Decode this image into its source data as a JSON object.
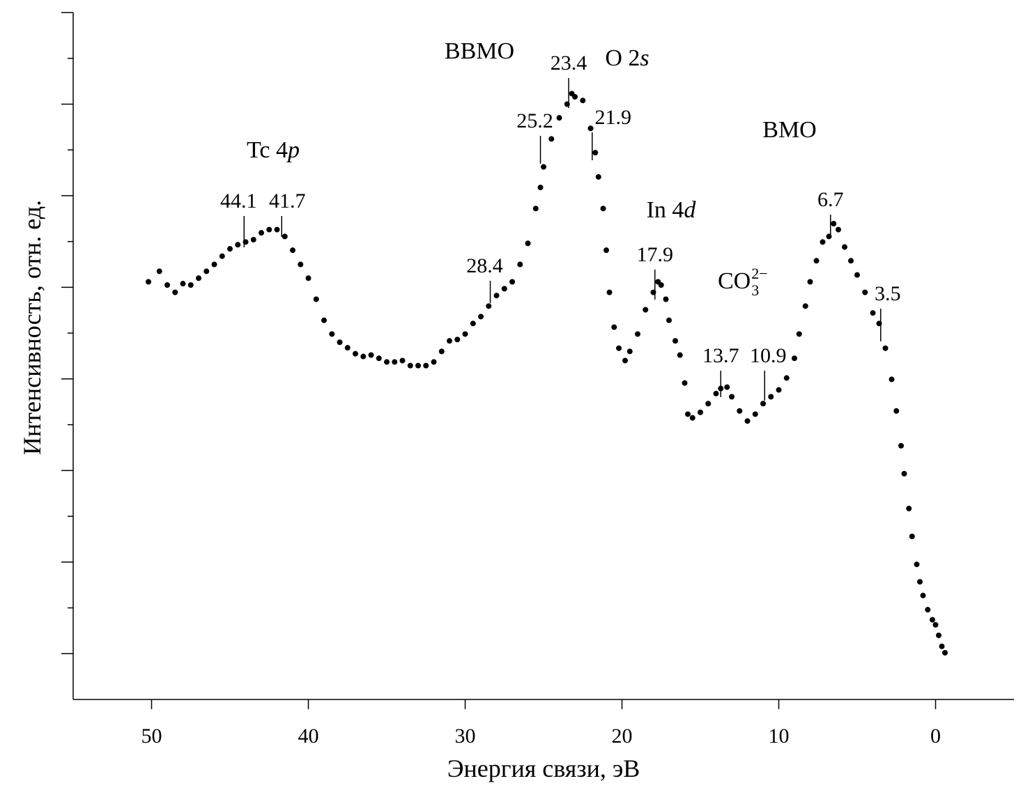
{
  "chart_data": {
    "type": "scatter",
    "x_label": "Энергия связи, эВ",
    "y_label": "Интенсивность, отн. ед.",
    "xlim": [
      55,
      -5
    ],
    "xticks": [
      50,
      40,
      30,
      20,
      10,
      0
    ],
    "ylim": [
      0,
      15
    ],
    "yticks": [
      1,
      2,
      3,
      4,
      5,
      6,
      7,
      8,
      9,
      10,
      11,
      12,
      13,
      14,
      15
    ],
    "color": "#000000",
    "series": [
      {
        "x": [
          50.2,
          49.5,
          49,
          48.5,
          48,
          47.5,
          47,
          46.5,
          46,
          45.5,
          45,
          44.5,
          44,
          43.5,
          43,
          42.5,
          42,
          41.5,
          41,
          40.5,
          40,
          39.5,
          39,
          38.5,
          38,
          37.5,
          37,
          36.5,
          36,
          35.5,
          35,
          34.5,
          34,
          33.5,
          33,
          32.5,
          32,
          31.5,
          31,
          30.5,
          30,
          29.5,
          29,
          28.5,
          28,
          27.5,
          27,
          26.5,
          26,
          25.5,
          25.2,
          25,
          24.5,
          24,
          23.5,
          23.2,
          23,
          22.5,
          22,
          21.7,
          21.5,
          21.2,
          21,
          20.8,
          20.5,
          20.2,
          19.8,
          19.5,
          19,
          18.5,
          18,
          17.7,
          17.5,
          17.2,
          17,
          16.6,
          16.3,
          16,
          15.8,
          15.5,
          15,
          14.5,
          14,
          13.7,
          13.3,
          13,
          12.5,
          12,
          11.5,
          11,
          10.5,
          10,
          9.5,
          9,
          8.7,
          8.3,
          8,
          7.6,
          7.2,
          6.8,
          6.5,
          6.2,
          5.8,
          5.4,
          5,
          4.5,
          4,
          3.6,
          3.2,
          2.8,
          2.5,
          2.2,
          2,
          1.7,
          1.5,
          1.2,
          1,
          0.8,
          0.5,
          0.2,
          0,
          -0.2,
          -0.4,
          -0.6
        ],
        "values": [
          9.12,
          9.35,
          9.05,
          8.89,
          9.08,
          9.05,
          9.2,
          9.35,
          9.5,
          9.68,
          9.84,
          9.93,
          9.99,
          10.04,
          10.19,
          10.26,
          10.26,
          10.11,
          9.81,
          9.5,
          9.2,
          8.74,
          8.28,
          7.98,
          7.8,
          7.68,
          7.55,
          7.49,
          7.52,
          7.45,
          7.37,
          7.37,
          7.4,
          7.29,
          7.29,
          7.29,
          7.37,
          7.6,
          7.83,
          7.86,
          7.98,
          8.21,
          8.36,
          8.59,
          8.82,
          8.97,
          9.12,
          9.5,
          9.96,
          10.72,
          11.18,
          11.63,
          12.24,
          12.7,
          13.0,
          13.23,
          13.16,
          13.08,
          12.47,
          11.94,
          11.41,
          10.72,
          9.81,
          8.89,
          8.13,
          7.67,
          7.4,
          7.6,
          7.98,
          8.51,
          8.89,
          9.12,
          9.05,
          8.74,
          8.28,
          7.83,
          7.52,
          6.91,
          6.23,
          6.15,
          6.27,
          6.46,
          6.68,
          6.79,
          6.82,
          6.61,
          6.3,
          6.08,
          6.23,
          6.46,
          6.61,
          6.76,
          7.02,
          7.45,
          7.98,
          8.59,
          9.12,
          9.58,
          9.99,
          10.11,
          10.39,
          10.26,
          9.88,
          9.58,
          9.27,
          8.89,
          8.44,
          8.21,
          7.67,
          6.99,
          6.3,
          5.54,
          4.93,
          4.17,
          3.56,
          2.95,
          2.57,
          2.27,
          1.96,
          1.74,
          1.63,
          1.4,
          1.16,
          1.02
        ]
      }
    ],
    "peaks": [
      44.1,
      41.7,
      28.4,
      25.2,
      23.4,
      21.9,
      17.9,
      13.7,
      10.9,
      6.7,
      3.5
    ],
    "bands": [
      {
        "text": "Tc 4",
        "italic": "p"
      },
      {
        "text": "ВВМО"
      },
      {
        "text": "O 2",
        "italic": "s"
      },
      {
        "text": "ВМО"
      },
      {
        "text": "In 4",
        "italic": "d"
      },
      {
        "text": "CO",
        "sub": "3",
        "sup": "2−"
      }
    ]
  }
}
